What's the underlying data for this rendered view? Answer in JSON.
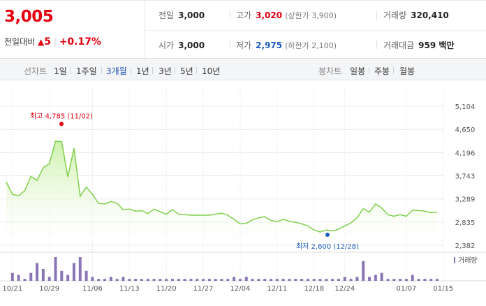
{
  "price": {
    "current": "3,005",
    "change_label": "전일대비",
    "change_arrow": "▲",
    "change_amount": "5",
    "change_pct": "+0.17%"
  },
  "stats": {
    "prev_close": {
      "label": "전일",
      "value": "3,000"
    },
    "open": {
      "label": "시가",
      "value": "3,000"
    },
    "high": {
      "label": "고가",
      "value": "3,020",
      "limit_label": "(상한가 3,900)"
    },
    "low": {
      "label": "저가",
      "value": "2,975",
      "limit_label": "(하한가 2,100)"
    },
    "volume": {
      "label": "거래량",
      "value": "320,410"
    },
    "amount": {
      "label": "거래대금",
      "value": "959 백만"
    }
  },
  "line_tabs": {
    "head": "선차트",
    "items": [
      "1일",
      "1주일",
      "3개월",
      "1년",
      "3년",
      "5년",
      "10년"
    ],
    "active": "3개월"
  },
  "candle_tabs": {
    "head": "봉차트",
    "items": [
      "일봉",
      "주봉",
      "월봉"
    ]
  },
  "chart_data": {
    "type": "line",
    "y_ticks": [
      2382,
      2835,
      3289,
      3743,
      4196,
      4650,
      5104
    ],
    "y_tick_labels": [
      "2,382",
      "2,835",
      "3,289",
      "3,743",
      "4,196",
      "4,650",
      "5,104"
    ],
    "ylim": [
      2382,
      5104
    ],
    "x_labels": [
      "10/21",
      "10/29",
      "11/06",
      "11/13",
      "11/20",
      "11/27",
      "12/04",
      "12/11",
      "12/18",
      "12/24",
      "01/07",
      "01/15"
    ],
    "x_label_index": [
      1,
      7,
      14,
      20,
      26,
      32,
      38,
      44,
      50,
      55,
      65,
      71
    ],
    "values": [
      3620,
      3380,
      3350,
      3450,
      3730,
      3650,
      3900,
      3980,
      4420,
      4410,
      3720,
      4280,
      3340,
      3520,
      3380,
      3200,
      3190,
      3240,
      3200,
      3080,
      3090,
      3050,
      3060,
      3000,
      3090,
      3040,
      2990,
      3080,
      2990,
      2980,
      2970,
      2970,
      2970,
      2970,
      2990,
      3010,
      2970,
      2890,
      2800,
      2810,
      2880,
      2920,
      2940,
      2870,
      2840,
      2890,
      2850,
      2830,
      2800,
      2760,
      2680,
      2640,
      2680,
      2660,
      2700,
      2760,
      2820,
      2920,
      3100,
      3030,
      3190,
      3110,
      2980,
      2950,
      2980,
      2950,
      3070,
      3060,
      3050,
      3020,
      3030
    ],
    "high_label": "최고 4,785 (11/02)",
    "high_value": 4785,
    "low_label": "최저 2,600 (12/28)",
    "low_value": 2600,
    "volume_legend": "거래량",
    "volume": [
      0,
      4,
      3,
      1,
      4,
      9,
      6,
      2,
      12,
      5,
      3,
      9,
      12,
      5,
      2,
      1,
      1,
      2,
      1,
      2,
      1,
      1,
      1,
      1,
      1,
      1,
      1,
      1,
      1,
      1,
      1,
      1,
      1,
      1,
      1,
      1,
      1,
      2,
      1,
      2,
      1,
      1,
      1,
      1,
      1,
      1,
      1,
      1,
      1,
      1,
      1,
      1,
      1,
      1,
      1,
      2,
      1,
      2,
      10,
      2,
      3,
      4,
      1,
      1,
      1,
      1,
      3,
      1,
      1,
      1,
      1
    ]
  },
  "colors": {
    "up": "#e3000f",
    "down": "#1a5bbd",
    "line": "#7fd04a",
    "area_top": "#c9f0a6",
    "volume_bar": "#8a75b5"
  }
}
